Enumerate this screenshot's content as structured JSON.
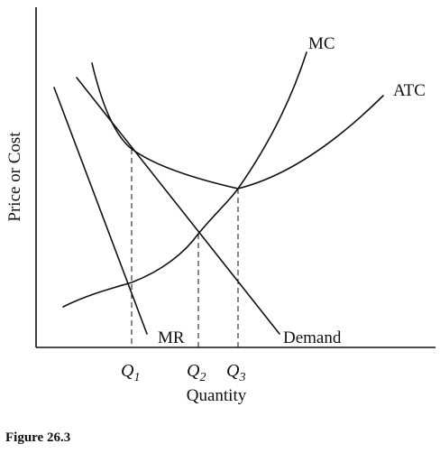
{
  "diagram": {
    "curves": {
      "mc": {
        "label": "MC"
      },
      "atc": {
        "label": "ATC"
      },
      "demand": {
        "label": "Demand"
      },
      "mr": {
        "label": "MR"
      }
    },
    "axes": {
      "x_label": "Quantity",
      "y_label": "Price or Cost"
    },
    "quantities": [
      {
        "main": "Q",
        "sub": "1"
      },
      {
        "main": "Q",
        "sub": "2"
      },
      {
        "main": "Q",
        "sub": "3"
      }
    ],
    "caption": "Figure 26.3",
    "colors": {
      "ink": "#111111",
      "background": "#ffffff"
    }
  }
}
